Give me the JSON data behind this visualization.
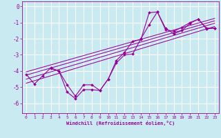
{
  "xlabel": "Windchill (Refroidissement éolien,°C)",
  "background_color": "#c8eaf0",
  "grid_color": "#ffffff",
  "line_color": "#990099",
  "xlim": [
    -0.5,
    23.5
  ],
  "ylim": [
    -6.6,
    0.3
  ],
  "yticks": [
    0,
    -1,
    -2,
    -3,
    -4,
    -5,
    -6
  ],
  "xticks": [
    0,
    1,
    2,
    3,
    4,
    5,
    6,
    7,
    8,
    9,
    10,
    11,
    12,
    13,
    14,
    15,
    16,
    17,
    18,
    19,
    20,
    21,
    22,
    23
  ],
  "series1_x": [
    0,
    1,
    2,
    3,
    4,
    5,
    6,
    7,
    8,
    9,
    10,
    11,
    12,
    13,
    14,
    15,
    16,
    17,
    18,
    19,
    20,
    21,
    22,
    23
  ],
  "series1_y": [
    -4.2,
    -4.8,
    -4.3,
    -3.8,
    -4.0,
    -5.3,
    -5.7,
    -5.15,
    -5.15,
    -5.2,
    -4.5,
    -3.5,
    -3.0,
    -2.95,
    -2.0,
    -1.15,
    -0.35,
    -1.35,
    -1.7,
    -1.5,
    -1.05,
    -0.8,
    -1.4,
    -1.35
  ],
  "series2_x": [
    3,
    4,
    5,
    6,
    7,
    8,
    9,
    10,
    11,
    12,
    13,
    14,
    15,
    16,
    17,
    18,
    19,
    20,
    21,
    22,
    23
  ],
  "series2_y": [
    -3.85,
    -4.0,
    -4.85,
    -5.55,
    -4.85,
    -4.85,
    -5.2,
    -4.5,
    -3.35,
    -2.85,
    -2.15,
    -2.05,
    -0.4,
    -0.35,
    -1.45,
    -1.55,
    -1.3,
    -1.0,
    -0.8,
    -1.35,
    -1.35
  ],
  "regression_lines": [
    {
      "x": [
        0,
        23
      ],
      "y": [
        -4.75,
        -1.25
      ]
    },
    {
      "x": [
        0,
        23
      ],
      "y": [
        -4.5,
        -1.05
      ]
    },
    {
      "x": [
        0,
        23
      ],
      "y": [
        -4.25,
        -0.9
      ]
    },
    {
      "x": [
        0,
        23
      ],
      "y": [
        -4.05,
        -0.75
      ]
    }
  ]
}
